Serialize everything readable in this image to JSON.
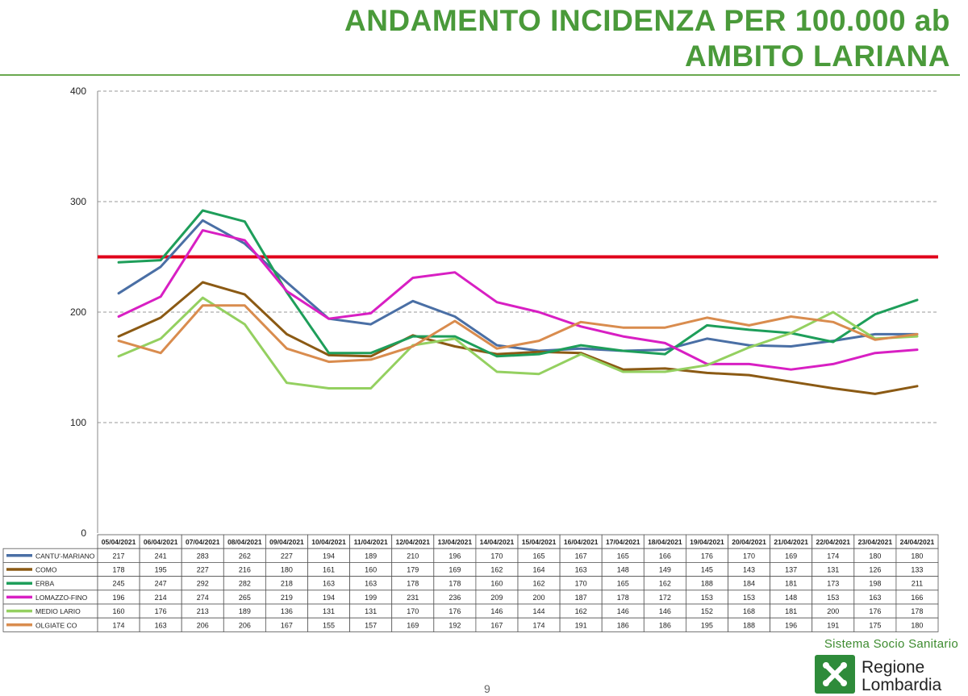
{
  "header": {
    "title_line1": "ANDAMENTO INCIDENZA PER 100.000 ab",
    "title_line2": "AMBITO LARIANA"
  },
  "footer": {
    "org": "Sistema Socio Sanitario",
    "logo_line1": "Regione",
    "logo_line2": "Lombardia",
    "page_number": "9"
  },
  "chart_data": {
    "type": "line",
    "title": "",
    "xlabel": "",
    "ylabel": "",
    "ylim": [
      0,
      400
    ],
    "yticks": [
      0,
      100,
      200,
      300,
      400
    ],
    "grid": true,
    "threshold": {
      "value": 250,
      "color": "#e0001a"
    },
    "categories": [
      "05/04/2021",
      "06/04/2021",
      "07/04/2021",
      "08/04/2021",
      "09/04/2021",
      "10/04/2021",
      "11/04/2021",
      "12/04/2021",
      "13/04/2021",
      "14/04/2021",
      "15/04/2021",
      "16/04/2021",
      "17/04/2021",
      "18/04/2021",
      "19/04/2021",
      "20/04/2021",
      "21/04/2021",
      "22/04/2021",
      "23/04/2021",
      "24/04/2021"
    ],
    "series": [
      {
        "name": "CANTU'-MARIANO",
        "color": "#4a6fa5",
        "values": [
          217,
          241,
          283,
          262,
          227,
          194,
          189,
          210,
          196,
          170,
          165,
          167,
          165,
          166,
          176,
          170,
          169,
          174,
          180,
          180
        ]
      },
      {
        "name": "COMO",
        "color": "#8b5a14",
        "values": [
          178,
          195,
          227,
          216,
          180,
          161,
          160,
          179,
          169,
          162,
          164,
          163,
          148,
          149,
          145,
          143,
          137,
          131,
          126,
          133
        ]
      },
      {
        "name": "ERBA",
        "color": "#1e9e5a",
        "values": [
          245,
          247,
          292,
          282,
          218,
          163,
          163,
          178,
          178,
          160,
          162,
          170,
          165,
          162,
          188,
          184,
          181,
          173,
          198,
          211
        ]
      },
      {
        "name": "LOMAZZO-FINO",
        "color": "#d81fc3",
        "values": [
          196,
          214,
          274,
          265,
          219,
          194,
          199,
          231,
          236,
          209,
          200,
          187,
          178,
          172,
          153,
          153,
          148,
          153,
          163,
          166
        ]
      },
      {
        "name": "MEDIO LARIO",
        "color": "#94d060",
        "values": [
          160,
          176,
          213,
          189,
          136,
          131,
          131,
          170,
          176,
          146,
          144,
          162,
          146,
          146,
          152,
          168,
          181,
          200,
          176,
          178
        ]
      },
      {
        "name": "OLGIATE CO",
        "color": "#d98c4e",
        "values": [
          174,
          163,
          206,
          206,
          167,
          155,
          157,
          169,
          192,
          167,
          174,
          191,
          186,
          186,
          195,
          188,
          196,
          191,
          175,
          180
        ]
      }
    ]
  }
}
